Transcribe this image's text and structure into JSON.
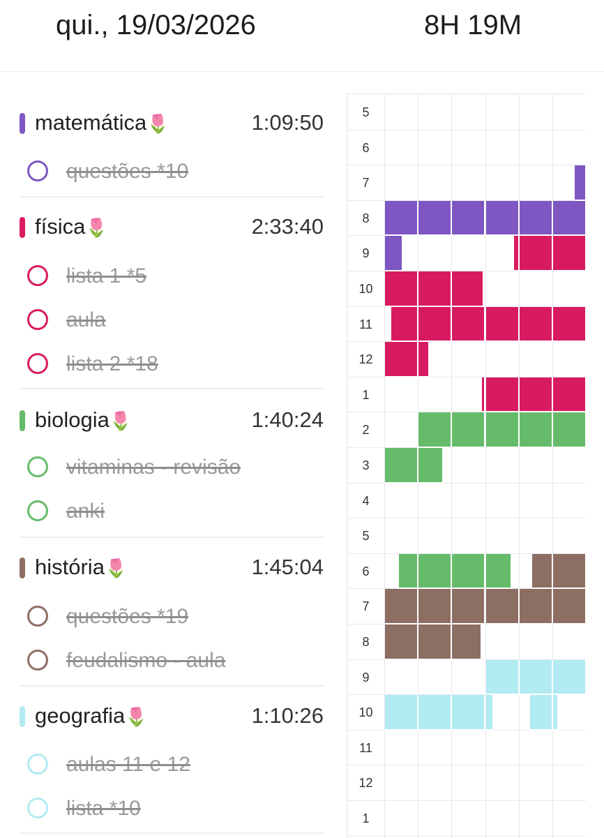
{
  "header": {
    "date": "qui., 19/03/2026",
    "total": "8H 19M"
  },
  "subjects": [
    {
      "name": "matemática",
      "time": "1:09:50",
      "color": "#7e57c2",
      "tasks": [
        {
          "label": "questões *10",
          "done": true
        }
      ]
    },
    {
      "name": "física",
      "time": "2:33:40",
      "color": "#d81b60",
      "tasks": [
        {
          "label": "lista 1 *5",
          "done": true
        },
        {
          "label": "aula",
          "done": true
        },
        {
          "label": "lista 2 *18",
          "done": true
        }
      ]
    },
    {
      "name": "biologia",
      "time": "1:40:24",
      "color": "#66bb6a",
      "tasks": [
        {
          "label": "vitaminas - revisão",
          "done": true
        },
        {
          "label": "anki",
          "done": true
        }
      ]
    },
    {
      "name": "história",
      "time": "1:45:04",
      "color": "#8d6e63",
      "tasks": [
        {
          "label": "questões *19",
          "done": true
        },
        {
          "label": "feudalismo - aula",
          "done": true
        }
      ]
    },
    {
      "name": "geografia",
      "time": "1:10:26",
      "color": "#b2ebf2",
      "tasks": [
        {
          "label": "aulas 11 e 12",
          "done": true
        },
        {
          "label": "lista *10",
          "done": true
        }
      ]
    }
  ],
  "flower_emoji": "🌷",
  "timeline": {
    "hours": [
      "5",
      "6",
      "7",
      "8",
      "9",
      "10",
      "11",
      "12",
      "1",
      "2",
      "3",
      "4",
      "5",
      "6",
      "7",
      "8",
      "9",
      "10",
      "11",
      "12",
      "1"
    ],
    "columns_per_hour": 6,
    "sessions": [
      {
        "subject": 0,
        "hour_index": 2,
        "from": 0.94,
        "to": 1.0
      },
      {
        "subject": 0,
        "hour_index": 3,
        "from": 0.0,
        "to": 1.0
      },
      {
        "subject": 0,
        "hour_index": 4,
        "from": 0.0,
        "to": 0.09
      },
      {
        "subject": 1,
        "hour_index": 4,
        "from": 0.64,
        "to": 1.0
      },
      {
        "subject": 1,
        "hour_index": 5,
        "from": 0.0,
        "to": 0.49
      },
      {
        "subject": 1,
        "hour_index": 6,
        "from": 0.03,
        "to": 1.0
      },
      {
        "subject": 1,
        "hour_index": 7,
        "from": 0.0,
        "to": 0.22
      },
      {
        "subject": 1,
        "hour_index": 8,
        "from": 0.48,
        "to": 1.0
      },
      {
        "subject": 2,
        "hour_index": 9,
        "from": 0.16,
        "to": 1.0
      },
      {
        "subject": 2,
        "hour_index": 10,
        "from": 0.0,
        "to": 0.29
      },
      {
        "subject": 2,
        "hour_index": 13,
        "from": 0.07,
        "to": 0.63
      },
      {
        "subject": 3,
        "hour_index": 13,
        "from": 0.73,
        "to": 1.0
      },
      {
        "subject": 3,
        "hour_index": 14,
        "from": 0.0,
        "to": 1.0
      },
      {
        "subject": 3,
        "hour_index": 15,
        "from": 0.0,
        "to": 0.48
      },
      {
        "subject": 4,
        "hour_index": 16,
        "from": 0.5,
        "to": 1.0
      },
      {
        "subject": 4,
        "hour_index": 17,
        "from": 0.0,
        "to": 0.54
      },
      {
        "subject": 4,
        "hour_index": 17,
        "from": 0.72,
        "to": 0.86
      }
    ]
  }
}
